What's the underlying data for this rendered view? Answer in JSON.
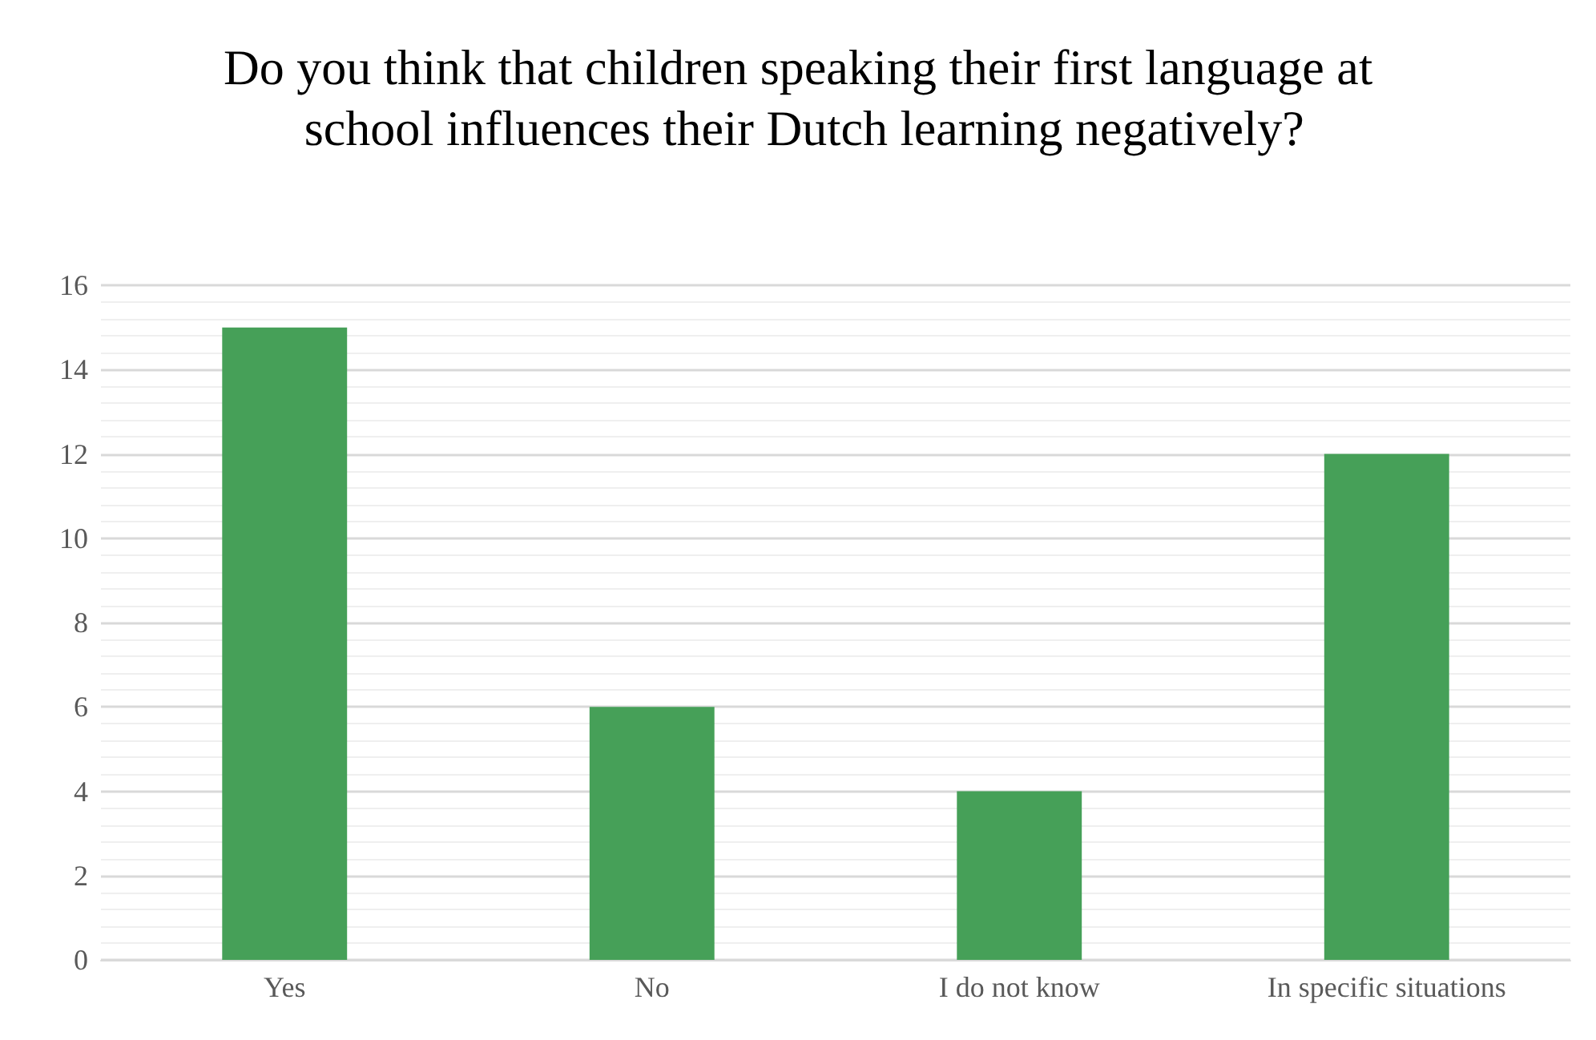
{
  "chart_data": {
    "type": "bar",
    "title": "Do you think that children speaking their first language at school influences their Dutch learning negatively?",
    "categories": [
      "Yes",
      "No",
      "I do not know",
      "In specific situations"
    ],
    "values": [
      15,
      6,
      4,
      12
    ],
    "color": "#46a058",
    "ylim": [
      0,
      16
    ],
    "yticks": [
      0,
      2,
      4,
      6,
      8,
      10,
      12,
      14,
      16
    ],
    "grid": "y"
  }
}
